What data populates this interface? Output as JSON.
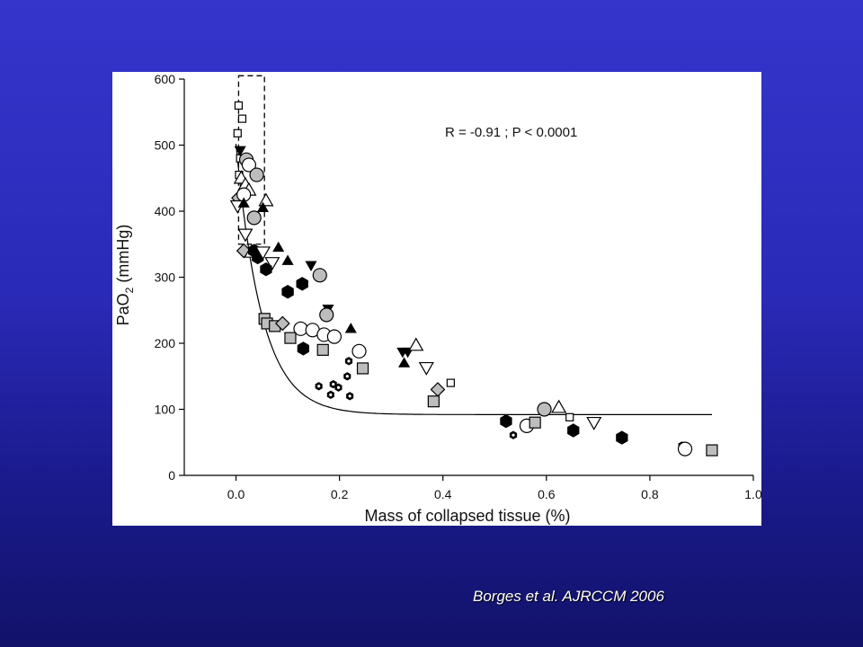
{
  "citation": "Borges et al. AJRCCM 2006",
  "chart_data": {
    "type": "scatter",
    "title": "",
    "xlabel": "Mass of collapsed tissue (%)",
    "ylabel_main": "PaO",
    "ylabel_sub": "2",
    "ylabel_unit": " (mmHg)",
    "annotation": "R = -0.91 ; P < 0.0001",
    "xlim": [
      -0.1,
      1.0
    ],
    "ylim": [
      0,
      600
    ],
    "x_ticks": [
      0.0,
      0.2,
      0.4,
      0.6,
      0.8,
      1.0
    ],
    "x_tick_labels": [
      "0.0",
      "0.2",
      "0.4",
      "0.6",
      "0.8",
      "1.0"
    ],
    "y_ticks": [
      0,
      100,
      200,
      300,
      400,
      500,
      600
    ],
    "y_tick_labels": [
      "0",
      "100",
      "200",
      "300",
      "400",
      "500",
      "600"
    ],
    "grid": false,
    "reference_box": {
      "x": [
        0.005,
        0.055
      ],
      "y": [
        350,
        605
      ],
      "style": "dashed"
    },
    "fit_curve": {
      "type": "exponential-decay",
      "y0": 92,
      "a": 410,
      "k": 20,
      "x_range": [
        0.0,
        0.92
      ]
    },
    "marker_styles": {
      "open-square": {
        "shape": "square",
        "fill": "#ffffff",
        "size": 8
      },
      "gray-square": {
        "shape": "square",
        "fill": "#bdbdbd",
        "size": 12
      },
      "open-circle": {
        "shape": "circle",
        "fill": "#ffffff",
        "size": 15
      },
      "gray-circle": {
        "shape": "circle",
        "fill": "#bdbdbd",
        "size": 15
      },
      "open-triangle-up": {
        "shape": "triangle-up",
        "fill": "#ffffff",
        "size": 15
      },
      "black-triangle-up": {
        "shape": "triangle-up",
        "fill": "#000000",
        "size": 11
      },
      "open-triangle-down": {
        "shape": "triangle-down",
        "fill": "#ffffff",
        "size": 15
      },
      "black-triangle-down": {
        "shape": "triangle-down",
        "fill": "#000000",
        "size": 11
      },
      "gray-diamond": {
        "shape": "diamond",
        "fill": "#bdbdbd",
        "size": 15
      },
      "black-hexagon": {
        "shape": "hexagon",
        "fill": "#000000",
        "size": 14
      },
      "small-hexagon": {
        "shape": "hexagon",
        "fill": "#000000",
        "size": 8,
        "dot": true
      }
    },
    "points": [
      {
        "x": 0.005,
        "y": 560,
        "m": "open-square"
      },
      {
        "x": 0.012,
        "y": 540,
        "m": "open-square"
      },
      {
        "x": 0.003,
        "y": 518,
        "m": "open-square"
      },
      {
        "x": 0.008,
        "y": 480,
        "m": "open-square"
      },
      {
        "x": 0.006,
        "y": 455,
        "m": "open-square"
      },
      {
        "x": 0.008,
        "y": 492,
        "m": "black-triangle-down"
      },
      {
        "x": 0.02,
        "y": 478,
        "m": "gray-circle"
      },
      {
        "x": 0.025,
        "y": 470,
        "m": "open-circle"
      },
      {
        "x": 0.04,
        "y": 455,
        "m": "gray-circle"
      },
      {
        "x": 0.01,
        "y": 450,
        "m": "open-triangle-up"
      },
      {
        "x": 0.018,
        "y": 440,
        "m": "open-triangle-up"
      },
      {
        "x": 0.025,
        "y": 432,
        "m": "open-triangle-up"
      },
      {
        "x": 0.058,
        "y": 416,
        "m": "open-triangle-up"
      },
      {
        "x": 0.005,
        "y": 420,
        "m": "gray-diamond"
      },
      {
        "x": 0.015,
        "y": 425,
        "m": "open-circle"
      },
      {
        "x": 0.035,
        "y": 390,
        "m": "gray-circle"
      },
      {
        "x": 0.003,
        "y": 408,
        "m": "open-triangle-down"
      },
      {
        "x": 0.015,
        "y": 412,
        "m": "black-triangle-up"
      },
      {
        "x": 0.052,
        "y": 405,
        "m": "black-triangle-up"
      },
      {
        "x": 0.018,
        "y": 365,
        "m": "open-triangle-down"
      },
      {
        "x": 0.015,
        "y": 340,
        "m": "gray-diamond"
      },
      {
        "x": 0.03,
        "y": 338,
        "m": "open-triangle-up"
      },
      {
        "x": 0.035,
        "y": 340,
        "m": "black-hexagon"
      },
      {
        "x": 0.042,
        "y": 330,
        "m": "black-hexagon"
      },
      {
        "x": 0.052,
        "y": 338,
        "m": "open-triangle-down"
      },
      {
        "x": 0.07,
        "y": 322,
        "m": "open-triangle-down"
      },
      {
        "x": 0.082,
        "y": 345,
        "m": "black-triangle-up"
      },
      {
        "x": 0.1,
        "y": 325,
        "m": "black-triangle-up"
      },
      {
        "x": 0.058,
        "y": 312,
        "m": "black-hexagon"
      },
      {
        "x": 0.145,
        "y": 318,
        "m": "black-triangle-down"
      },
      {
        "x": 0.162,
        "y": 303,
        "m": "gray-circle"
      },
      {
        "x": 0.128,
        "y": 290,
        "m": "black-hexagon"
      },
      {
        "x": 0.1,
        "y": 278,
        "m": "black-hexagon"
      },
      {
        "x": 0.178,
        "y": 252,
        "m": "black-triangle-down"
      },
      {
        "x": 0.175,
        "y": 243,
        "m": "gray-circle"
      },
      {
        "x": 0.055,
        "y": 237,
        "m": "gray-square"
      },
      {
        "x": 0.06,
        "y": 230,
        "m": "gray-square"
      },
      {
        "x": 0.075,
        "y": 226,
        "m": "gray-square"
      },
      {
        "x": 0.09,
        "y": 230,
        "m": "gray-diamond"
      },
      {
        "x": 0.125,
        "y": 222,
        "m": "open-circle"
      },
      {
        "x": 0.148,
        "y": 220,
        "m": "open-circle"
      },
      {
        "x": 0.17,
        "y": 213,
        "m": "open-circle"
      },
      {
        "x": 0.19,
        "y": 210,
        "m": "open-circle"
      },
      {
        "x": 0.222,
        "y": 222,
        "m": "black-triangle-up"
      },
      {
        "x": 0.105,
        "y": 208,
        "m": "gray-square"
      },
      {
        "x": 0.13,
        "y": 192,
        "m": "black-hexagon"
      },
      {
        "x": 0.168,
        "y": 190,
        "m": "gray-square"
      },
      {
        "x": 0.238,
        "y": 188,
        "m": "open-circle"
      },
      {
        "x": 0.245,
        "y": 162,
        "m": "gray-square"
      },
      {
        "x": 0.218,
        "y": 173,
        "m": "small-hexagon"
      },
      {
        "x": 0.215,
        "y": 150,
        "m": "small-hexagon"
      },
      {
        "x": 0.16,
        "y": 135,
        "m": "small-hexagon"
      },
      {
        "x": 0.188,
        "y": 138,
        "m": "small-hexagon"
      },
      {
        "x": 0.198,
        "y": 133,
        "m": "small-hexagon"
      },
      {
        "x": 0.183,
        "y": 122,
        "m": "small-hexagon"
      },
      {
        "x": 0.22,
        "y": 120,
        "m": "small-hexagon"
      },
      {
        "x": 0.322,
        "y": 187,
        "m": "black-triangle-down"
      },
      {
        "x": 0.332,
        "y": 187,
        "m": "black-triangle-down"
      },
      {
        "x": 0.348,
        "y": 197,
        "m": "open-triangle-up"
      },
      {
        "x": 0.325,
        "y": 170,
        "m": "black-triangle-up"
      },
      {
        "x": 0.368,
        "y": 163,
        "m": "open-triangle-down"
      },
      {
        "x": 0.415,
        "y": 140,
        "m": "open-square"
      },
      {
        "x": 0.39,
        "y": 130,
        "m": "gray-diamond"
      },
      {
        "x": 0.382,
        "y": 112,
        "m": "gray-square"
      },
      {
        "x": 0.522,
        "y": 82,
        "m": "black-hexagon"
      },
      {
        "x": 0.536,
        "y": 61,
        "m": "small-hexagon"
      },
      {
        "x": 0.562,
        "y": 75,
        "m": "open-circle"
      },
      {
        "x": 0.578,
        "y": 80,
        "m": "gray-square"
      },
      {
        "x": 0.596,
        "y": 100,
        "m": "gray-circle"
      },
      {
        "x": 0.624,
        "y": 103,
        "m": "open-triangle-up"
      },
      {
        "x": 0.645,
        "y": 88,
        "m": "open-square"
      },
      {
        "x": 0.652,
        "y": 68,
        "m": "black-hexagon"
      },
      {
        "x": 0.692,
        "y": 80,
        "m": "open-triangle-down"
      },
      {
        "x": 0.746,
        "y": 57,
        "m": "black-hexagon"
      },
      {
        "x": 0.862,
        "y": 45,
        "m": "small-hexagon"
      },
      {
        "x": 0.868,
        "y": 40,
        "m": "open-circle"
      },
      {
        "x": 0.92,
        "y": 38,
        "m": "gray-square"
      }
    ]
  }
}
